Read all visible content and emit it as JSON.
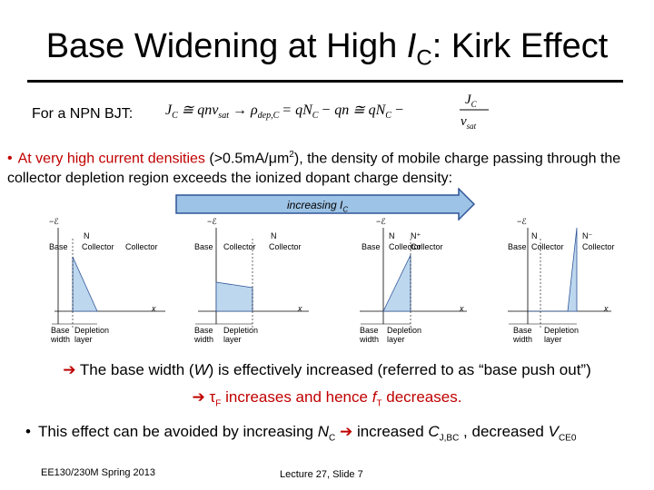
{
  "title": {
    "prefix": "Base Widening at High ",
    "ic_main": "I",
    "ic_sub": "C",
    "suffix": ": Kirk Effect"
  },
  "npn_label": "For a NPN BJT:",
  "equation": {
    "jc1": "J",
    "c1": "C",
    "approx": "≅ qnv",
    "sat1": "sat",
    "arrow1": "→ ρ",
    "dep": "dep,C",
    "eq1": "= qN",
    "cN": "C",
    "minus": "− qn ≅ qN",
    "cN2": "C",
    "minus2": "−",
    "frac_num_j": "J",
    "frac_num_c": "C",
    "frac_den_v": "v",
    "frac_den_sat": "sat"
  },
  "bullet1": {
    "marker": "•",
    "red1": "At very high current densities",
    "black1": " (>0.5mA/",
    "mu": "μ",
    "black2": "m",
    "sup2": "2",
    "black3": "), the density of mobile charge passing through the collector depletion region exceeds the ionized dopant charge density:"
  },
  "arrow": {
    "label_prefix": "increasing I",
    "label_sub": "C"
  },
  "panels": [
    {
      "e_label": "−ℰ",
      "n_label": "N",
      "base": "Base",
      "collector1": "Collector",
      "collector2": "Collector",
      "x": "x",
      "base_width": "Base\nwidth",
      "depletion": "Depletion\nlayer"
    },
    {
      "e_label": "−ℰ",
      "n_label": "N",
      "base": "Base",
      "collector1": "Collector",
      "collector2": "Collector",
      "x": "x",
      "base_width": "Base\nwidth",
      "depletion": "Depletion\nlayer"
    },
    {
      "e_label": "−ℰ",
      "n_label": "N",
      "np_label": "N⁺",
      "base": "Base",
      "collector1": "Collector",
      "collector2": "Collector",
      "x": "x",
      "base_width": "Base\nwidth",
      "depletion": "Depletion\nlayer"
    },
    {
      "e_label": "−ℰ",
      "n_label": "N",
      "np_label": "N⁻",
      "base": "Base",
      "collector1": "Collector",
      "collector2": "Collector",
      "x": "x",
      "base_width": "Base\nwidth",
      "depletion": "Depletion\nlayer"
    }
  ],
  "conclusion1": {
    "arrow": "➔",
    "a": " The base width (",
    "w": "W",
    "b": ") is effectively increased",
    "c": " (referred to as “base push out”)"
  },
  "conclusion2": {
    "arrow": "➔",
    "tau": " τ",
    "f": "F",
    "a": " increases and hence ",
    "ft": "f",
    "t": "T",
    "b": " decreases."
  },
  "bullet2": {
    "marker": "•",
    "a": "This effect can be avoided by increasing ",
    "nc": "N",
    "c": "C",
    "arrow": " ➔ ",
    "b": "increased ",
    "cj": "C",
    "jbc": "J,BC",
    "c2": " , decreased ",
    "v": "V",
    "ce0": "CE0"
  },
  "footer": {
    "left": "EE130/230M Spring 2013",
    "center": "Lecture 27, Slide 7"
  },
  "colors": {
    "accent_red": "#c00000",
    "arrow_fill": "#9dc3e6",
    "arrow_stroke": "#2f5597",
    "depletion_fill": "#bdd7ee"
  }
}
